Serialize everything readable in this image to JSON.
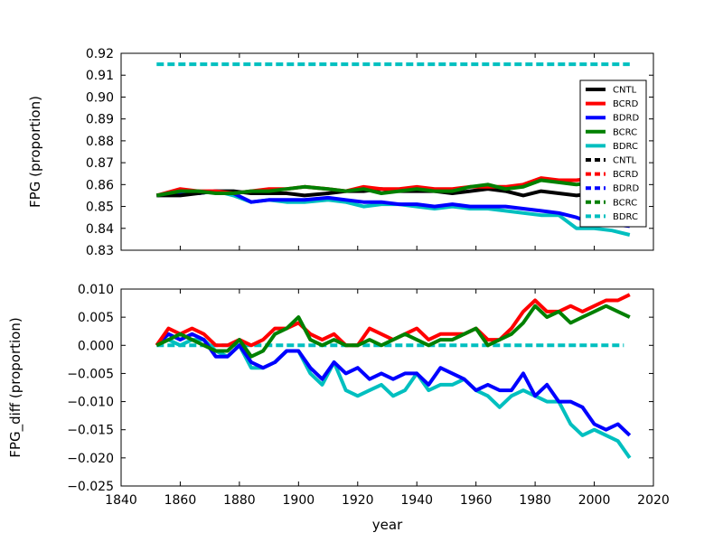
{
  "chart_data": [
    {
      "type": "line",
      "ylabel": "FPG (proportion)",
      "xlim": [
        1840,
        2020
      ],
      "ylim": [
        0.83,
        0.92
      ],
      "yticks": [
        "0.83",
        "0.84",
        "0.85",
        "0.86",
        "0.87",
        "0.88",
        "0.89",
        "0.90",
        "0.91",
        "0.92"
      ],
      "show_xticklabels": false,
      "grid": false,
      "legend_placement": "right",
      "legend": [
        {
          "label": "CNTL",
          "color": "#000000",
          "style": "solid"
        },
        {
          "label": "BCRD",
          "color": "#ff0000",
          "style": "solid"
        },
        {
          "label": "BDRD",
          "color": "#0000ff",
          "style": "solid"
        },
        {
          "label": "BCRC",
          "color": "#008000",
          "style": "solid"
        },
        {
          "label": "BDRC",
          "color": "#00bfbf",
          "style": "solid"
        },
        {
          "label": "CNTL",
          "color": "#000000",
          "style": "dashed"
        },
        {
          "label": "BCRD",
          "color": "#ff0000",
          "style": "dashed"
        },
        {
          "label": "BDRD",
          "color": "#0000ff",
          "style": "dashed"
        },
        {
          "label": "BCRC",
          "color": "#008000",
          "style": "dashed"
        },
        {
          "label": "BDRC",
          "color": "#00bfbf",
          "style": "dashed"
        }
      ],
      "series": [
        {
          "color": "#00bfbf",
          "style": "dashed",
          "x": [
            1852,
            2012
          ],
          "y": [
            0.915,
            0.915
          ]
        },
        {
          "color": "#00bfbf",
          "style": "solid",
          "x": [
            1852,
            1860,
            1866,
            1872,
            1878,
            1884,
            1890,
            1896,
            1902,
            1910,
            1916,
            1922,
            1928,
            1934,
            1940,
            1946,
            1952,
            1958,
            1964,
            1970,
            1976,
            1982,
            1988,
            1994,
            2000,
            2006,
            2012
          ],
          "y": [
            0.855,
            0.856,
            0.856,
            0.857,
            0.855,
            0.852,
            0.853,
            0.852,
            0.852,
            0.853,
            0.852,
            0.85,
            0.851,
            0.851,
            0.85,
            0.849,
            0.85,
            0.849,
            0.849,
            0.848,
            0.847,
            0.846,
            0.846,
            0.84,
            0.84,
            0.839,
            0.837
          ]
        },
        {
          "color": "#0000ff",
          "style": "solid",
          "x": [
            1852,
            1860,
            1866,
            1872,
            1878,
            1884,
            1890,
            1896,
            1902,
            1910,
            1916,
            1922,
            1928,
            1934,
            1940,
            1946,
            1952,
            1958,
            1964,
            1970,
            1976,
            1982,
            1988,
            1994,
            2000,
            2006,
            2012
          ],
          "y": [
            0.855,
            0.856,
            0.856,
            0.857,
            0.856,
            0.852,
            0.853,
            0.853,
            0.853,
            0.854,
            0.853,
            0.852,
            0.852,
            0.851,
            0.851,
            0.85,
            0.851,
            0.85,
            0.85,
            0.85,
            0.849,
            0.848,
            0.847,
            0.845,
            0.842,
            0.842,
            0.841
          ]
        },
        {
          "color": "#000000",
          "style": "solid",
          "x": [
            1852,
            1860,
            1866,
            1872,
            1878,
            1884,
            1890,
            1896,
            1902,
            1910,
            1916,
            1922,
            1928,
            1934,
            1940,
            1946,
            1952,
            1958,
            1964,
            1970,
            1976,
            1982,
            1988,
            1994,
            2000,
            2006,
            2012
          ],
          "y": [
            0.855,
            0.855,
            0.856,
            0.857,
            0.857,
            0.856,
            0.856,
            0.856,
            0.855,
            0.856,
            0.857,
            0.857,
            0.858,
            0.857,
            0.857,
            0.857,
            0.856,
            0.857,
            0.858,
            0.857,
            0.855,
            0.857,
            0.856,
            0.855,
            0.856,
            0.856,
            0.857
          ]
        },
        {
          "color": "#ff0000",
          "style": "solid",
          "x": [
            1852,
            1860,
            1866,
            1872,
            1878,
            1884,
            1890,
            1896,
            1902,
            1910,
            1916,
            1922,
            1928,
            1934,
            1940,
            1946,
            1952,
            1958,
            1964,
            1970,
            1976,
            1982,
            1988,
            1994,
            2000,
            2006,
            2012
          ],
          "y": [
            0.855,
            0.858,
            0.857,
            0.857,
            0.856,
            0.857,
            0.858,
            0.858,
            0.859,
            0.858,
            0.857,
            0.859,
            0.858,
            0.858,
            0.859,
            0.858,
            0.858,
            0.859,
            0.859,
            0.859,
            0.86,
            0.863,
            0.862,
            0.862,
            0.863,
            0.865,
            0.866
          ]
        },
        {
          "color": "#008000",
          "style": "solid",
          "x": [
            1852,
            1860,
            1866,
            1872,
            1878,
            1884,
            1890,
            1896,
            1902,
            1910,
            1916,
            1922,
            1928,
            1934,
            1940,
            1946,
            1952,
            1958,
            1964,
            1970,
            1976,
            1982,
            1988,
            1994,
            2000,
            2006,
            2012
          ],
          "y": [
            0.855,
            0.857,
            0.857,
            0.856,
            0.856,
            0.857,
            0.857,
            0.858,
            0.859,
            0.858,
            0.857,
            0.858,
            0.856,
            0.857,
            0.858,
            0.857,
            0.857,
            0.859,
            0.86,
            0.858,
            0.859,
            0.862,
            0.861,
            0.86,
            0.861,
            0.862,
            0.862
          ]
        }
      ]
    },
    {
      "type": "line",
      "xlabel": "year",
      "ylabel": "FPG_diff (proportion)",
      "xlim": [
        1840,
        2020
      ],
      "ylim": [
        -0.025,
        0.01
      ],
      "xticks": [
        "1840",
        "1860",
        "1880",
        "1900",
        "1920",
        "1940",
        "1960",
        "1980",
        "2000",
        "2020"
      ],
      "yticks": [
        "−0.025",
        "−0.020",
        "−0.015",
        "−0.010",
        "−0.005",
        "0.000",
        "0.005",
        "0.010"
      ],
      "grid": false,
      "series": [
        {
          "color": "#00bfbf",
          "style": "dashed",
          "x": [
            1852,
            2010
          ],
          "y": [
            0.0,
            0.0
          ]
        },
        {
          "color": "#00bfbf",
          "style": "solid",
          "x": [
            1852,
            1856,
            1860,
            1864,
            1868,
            1872,
            1876,
            1880,
            1884,
            1888,
            1892,
            1896,
            1900,
            1904,
            1908,
            1912,
            1916,
            1920,
            1924,
            1928,
            1932,
            1936,
            1940,
            1944,
            1948,
            1952,
            1956,
            1960,
            1964,
            1968,
            1972,
            1976,
            1980,
            1984,
            1988,
            1992,
            1996,
            2000,
            2004,
            2008,
            2012
          ],
          "y": [
            0.0,
            0.001,
            0.0,
            0.001,
            0.001,
            -0.001,
            -0.002,
            0.0,
            -0.004,
            -0.004,
            -0.003,
            -0.001,
            -0.001,
            -0.005,
            -0.007,
            -0.003,
            -0.008,
            -0.009,
            -0.008,
            -0.007,
            -0.009,
            -0.008,
            -0.005,
            -0.008,
            -0.007,
            -0.007,
            -0.006,
            -0.008,
            -0.009,
            -0.011,
            -0.009,
            -0.008,
            -0.009,
            -0.01,
            -0.01,
            -0.014,
            -0.016,
            -0.015,
            -0.016,
            -0.017,
            -0.02
          ]
        },
        {
          "color": "#0000ff",
          "style": "solid",
          "x": [
            1852,
            1856,
            1860,
            1864,
            1868,
            1872,
            1876,
            1880,
            1884,
            1888,
            1892,
            1896,
            1900,
            1904,
            1908,
            1912,
            1916,
            1920,
            1924,
            1928,
            1932,
            1936,
            1940,
            1944,
            1948,
            1952,
            1956,
            1960,
            1964,
            1968,
            1972,
            1976,
            1980,
            1984,
            1988,
            1992,
            1996,
            2000,
            2004,
            2008,
            2012
          ],
          "y": [
            0.0,
            0.002,
            0.001,
            0.002,
            0.001,
            -0.002,
            -0.002,
            0.0,
            -0.003,
            -0.004,
            -0.003,
            -0.001,
            -0.001,
            -0.004,
            -0.006,
            -0.003,
            -0.005,
            -0.004,
            -0.006,
            -0.005,
            -0.006,
            -0.005,
            -0.005,
            -0.007,
            -0.004,
            -0.005,
            -0.006,
            -0.008,
            -0.007,
            -0.008,
            -0.008,
            -0.005,
            -0.009,
            -0.007,
            -0.01,
            -0.01,
            -0.011,
            -0.014,
            -0.015,
            -0.014,
            -0.016
          ]
        },
        {
          "color": "#ff0000",
          "style": "solid",
          "x": [
            1852,
            1856,
            1860,
            1864,
            1868,
            1872,
            1876,
            1880,
            1884,
            1888,
            1892,
            1896,
            1900,
            1904,
            1908,
            1912,
            1916,
            1920,
            1924,
            1928,
            1932,
            1936,
            1940,
            1944,
            1948,
            1952,
            1956,
            1960,
            1964,
            1968,
            1972,
            1976,
            1980,
            1984,
            1988,
            1992,
            1996,
            2000,
            2004,
            2008,
            2012
          ],
          "y": [
            0.0,
            0.003,
            0.002,
            0.003,
            0.002,
            0.0,
            0.0,
            0.001,
            0.0,
            0.001,
            0.003,
            0.003,
            0.004,
            0.002,
            0.001,
            0.002,
            0.0,
            0.0,
            0.003,
            0.002,
            0.001,
            0.002,
            0.003,
            0.001,
            0.002,
            0.002,
            0.002,
            0.003,
            0.001,
            0.001,
            0.003,
            0.006,
            0.008,
            0.006,
            0.006,
            0.007,
            0.006,
            0.007,
            0.008,
            0.008,
            0.009
          ]
        },
        {
          "color": "#008000",
          "style": "solid",
          "x": [
            1852,
            1856,
            1860,
            1864,
            1868,
            1872,
            1876,
            1880,
            1884,
            1888,
            1892,
            1896,
            1900,
            1904,
            1908,
            1912,
            1916,
            1920,
            1924,
            1928,
            1932,
            1936,
            1940,
            1944,
            1948,
            1952,
            1956,
            1960,
            1964,
            1968,
            1972,
            1976,
            1980,
            1984,
            1988,
            1992,
            1996,
            2000,
            2004,
            2008,
            2012
          ],
          "y": [
            0.0,
            0.001,
            0.002,
            0.001,
            0.0,
            -0.001,
            -0.001,
            0.001,
            -0.002,
            -0.001,
            0.002,
            0.003,
            0.005,
            0.001,
            0.0,
            0.001,
            0.0,
            0.0,
            0.001,
            0.0,
            0.001,
            0.002,
            0.001,
            0.0,
            0.001,
            0.001,
            0.002,
            0.003,
            0.0,
            0.001,
            0.002,
            0.004,
            0.007,
            0.005,
            0.006,
            0.004,
            0.005,
            0.006,
            0.007,
            0.006,
            0.005
          ]
        }
      ]
    }
  ]
}
